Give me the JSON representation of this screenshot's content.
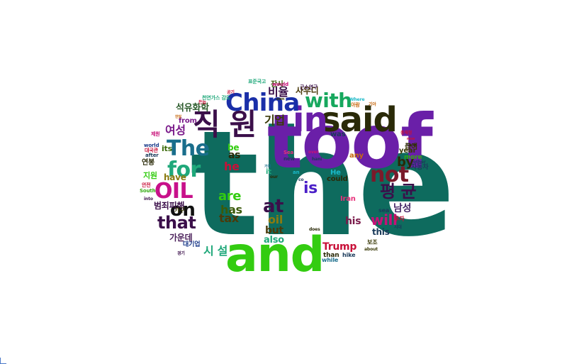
{
  "words": [
    {
      "id": "the",
      "text": "the",
      "color": "#0e6b5e"
    },
    {
      "id": "toof",
      "text": "toof",
      "color": "#6a1fa8"
    },
    {
      "id": "and",
      "text": "and",
      "color": "#33cc11"
    },
    {
      "id": "said",
      "text": "said",
      "color": "#2a2a08"
    },
    {
      "id": "in",
      "text": "in",
      "color": "#6a1fa8"
    },
    {
      "id": "jikwon",
      "text": "직 원",
      "color": "#3b0f4a"
    },
    {
      "id": "china",
      "text": "China",
      "color": "#1a2fa8"
    },
    {
      "id": "the2",
      "text": "The",
      "color": "#1a6e8c"
    },
    {
      "id": "for",
      "text": "for",
      "color": "#1fa87a"
    },
    {
      "id": "oil_caps",
      "text": "OIL",
      "color": "#c8108a"
    },
    {
      "id": "with",
      "text": "with",
      "color": "#17a85e"
    },
    {
      "id": "not",
      "text": "not",
      "color": "#7a1a2a"
    },
    {
      "id": "pyeonggyun",
      "text": "평 균",
      "color": "#3b0f4a"
    },
    {
      "id": "on",
      "text": "on",
      "color": "#101010"
    },
    {
      "id": "that",
      "text": "that",
      "color": "#3b0f4a"
    },
    {
      "id": "at",
      "text": "at",
      "color": "#3b0f4a"
    },
    {
      "id": "is",
      "text": "is",
      "color": "#4a1fc8"
    },
    {
      "id": "are",
      "text": "are",
      "color": "#33cc11"
    },
    {
      "id": "will",
      "text": "will",
      "color": "#c81078"
    },
    {
      "id": "by",
      "text": "by",
      "color": "#2a2a08"
    },
    {
      "id": "has",
      "text": "has",
      "color": "#3a5a0a"
    },
    {
      "id": "tax",
      "text": "tax",
      "color": "#4a3a0a"
    },
    {
      "id": "oil",
      "text": "oil",
      "color": "#8a7a10"
    },
    {
      "id": "but",
      "text": "but",
      "color": "#4a3a0a"
    },
    {
      "id": "also",
      "text": "also",
      "color": "#1fa87a"
    },
    {
      "id": "trump",
      "text": "Trump",
      "color": "#c81038"
    },
    {
      "id": "his",
      "text": "his",
      "color": "#7a1a4a"
    },
    {
      "id": "this",
      "text": "this",
      "color": "#1a3a5a"
    },
    {
      "id": "gieop",
      "text": "기업",
      "color": "#3a3a08"
    },
    {
      "id": "biyul",
      "text": "비율",
      "color": "#3b0f4a"
    },
    {
      "id": "seokyu",
      "text": "석유화학",
      "color": "#2a5a2a"
    },
    {
      "id": "yeoseong",
      "text": "여성",
      "color": "#7a1a8a"
    },
    {
      "id": "saudi",
      "text": "사우디",
      "color": "#4a3a0a"
    },
    {
      "id": "namseong",
      "text": "남성",
      "color": "#4a2a6a"
    },
    {
      "id": "siseol",
      "text": "시 설",
      "color": "#1fa87a"
    },
    {
      "id": "gaunde",
      "text": "가운데",
      "color": "#4a1f5a"
    },
    {
      "id": "beomjoe",
      "text": "범죄피해",
      "color": "#3b0f4a"
    },
    {
      "id": "as",
      "text": "as",
      "color": "#2a2a08"
    },
    {
      "id": "be",
      "text": "be",
      "color": "#33cc11"
    },
    {
      "id": "he",
      "text": "he",
      "color": "#c81038"
    },
    {
      "id": "have",
      "text": "have",
      "color": "#8a7a10"
    },
    {
      "id": "its",
      "text": "its",
      "color": "#3a6a0a"
    },
    {
      "id": "from",
      "text": "from",
      "color": "#7a1a8a"
    },
    {
      "id": "jiwon",
      "text": "지원",
      "color": "#33cc11"
    },
    {
      "id": "yeonbong",
      "text": "연봉",
      "color": "#2a2a08"
    },
    {
      "id": "it",
      "text": "it",
      "color": "#1fa87a"
    },
    {
      "id": "could",
      "text": "could",
      "color": "#2a2a08"
    },
    {
      "id": "gyeoyeo",
      "text": "급여",
      "color": "#3a3a08"
    },
    {
      "id": "year",
      "text": "year",
      "color": "#3a3a08"
    },
    {
      "id": "any",
      "text": "any",
      "color": "#c86a10"
    },
    {
      "id": "was",
      "text": "was",
      "color": "#1a3a5a"
    },
    {
      "id": "more",
      "text": "more",
      "color": "#33aa11"
    },
    {
      "id": "jadongcha",
      "text": "자동차",
      "color": "#1a3a5a"
    },
    {
      "id": "iran",
      "text": "Iran",
      "color": "#e8307a"
    },
    {
      "id": "he2",
      "text": "He",
      "color": "#1ab8c8"
    },
    {
      "id": "sea",
      "text": "sea",
      "color": "#1a3a5a"
    },
    {
      "id": "tuja",
      "text": "투자",
      "color": "#c81038"
    },
    {
      "id": "bojo",
      "text": "보조",
      "color": "#3a3a08"
    },
    {
      "id": "than",
      "text": "than",
      "color": "#2a2a08"
    },
    {
      "id": "while",
      "text": "while",
      "color": "#1a6e8c"
    },
    {
      "id": "hike",
      "text": "hike",
      "color": "#1a3a5a"
    },
    {
      "id": "daegieop",
      "text": "대기업",
      "color": "#1a3a8a"
    },
    {
      "id": "gagu",
      "text": "가구",
      "color": "#3a3a08"
    },
    {
      "id": "jansa",
      "text": "잔사",
      "color": "#3a5a0a"
    },
    {
      "id": "would",
      "text": "would",
      "color": "#c81078"
    },
    {
      "id": "kunseokgi",
      "text": "근소연구",
      "color": "#3b0f4a"
    },
    {
      "id": "cheonyeon",
      "text": "천연가스 감도",
      "color": "#1fa87a"
    },
    {
      "id": "pyojeon",
      "text": "표준국고",
      "color": "#1fa87a"
    },
    {
      "id": "world",
      "text": "world",
      "color": "#1a3a8a"
    },
    {
      "id": "daeguk",
      "text": "대국관",
      "color": "#c81038"
    },
    {
      "id": "jeoun",
      "text": "제원",
      "color": "#c81078"
    },
    {
      "id": "after",
      "text": "after",
      "color": "#1a3a5a"
    },
    {
      "id": "south",
      "text": "South",
      "color": "#33aa11"
    },
    {
      "id": "anjeon",
      "text": "안전",
      "color": "#c81038"
    },
    {
      "id": "into",
      "text": "into",
      "color": "#3b0f4a"
    },
    {
      "id": "bank",
      "text": "Bank",
      "color": "#2a2a08"
    },
    {
      "id": "other",
      "text": "other",
      "color": "#1a3a5a"
    },
    {
      "id": "our",
      "text": "our",
      "color": "#2a2a08"
    },
    {
      "id": "over",
      "text": "over",
      "color": "#c81078"
    },
    {
      "id": "new",
      "text": "new",
      "color": "#1a3a5a"
    },
    {
      "id": "an",
      "text": "an",
      "color": "#1ab8c8"
    },
    {
      "id": "sea2",
      "text": "Sea",
      "color": "#e8307a"
    },
    {
      "id": "hani",
      "text": "hani",
      "color": "#1a3a5a"
    },
    {
      "id": "where",
      "text": "Where",
      "color": "#1ab8c8"
    },
    {
      "id": "gia",
      "text": "기아",
      "color": "#c86a10"
    },
    {
      "id": "aram",
      "text": "아람",
      "color": "#c86a10"
    },
    {
      "id": "sidae",
      "text": "시대",
      "color": "#1a3a5a"
    },
    {
      "id": "about",
      "text": "about",
      "color": "#3a3a08"
    },
    {
      "id": "does",
      "text": "does",
      "color": "#2a2a08"
    },
    {
      "id": "co",
      "text": "co",
      "color": "#1a3a5a"
    },
    {
      "id": "chongjeong",
      "text": "총재정",
      "color": "#c81038"
    },
    {
      "id": "now",
      "text": "now",
      "color": "#c81038"
    },
    {
      "id": "own",
      "text": "own",
      "color": "#3a3a08"
    },
    {
      "id": "deuneup",
      "text": "든늡",
      "color": "#c81038"
    },
    {
      "id": "gonggi",
      "text": "공기",
      "color": "#c81038"
    },
    {
      "id": "han",
      "text": "한달",
      "color": "#c86a10"
    },
    {
      "id": "gaji",
      "text": "가지",
      "color": "#1a6e8c"
    },
    {
      "id": "gyeongi",
      "text": "경기",
      "color": "#3b0f4a"
    }
  ]
}
